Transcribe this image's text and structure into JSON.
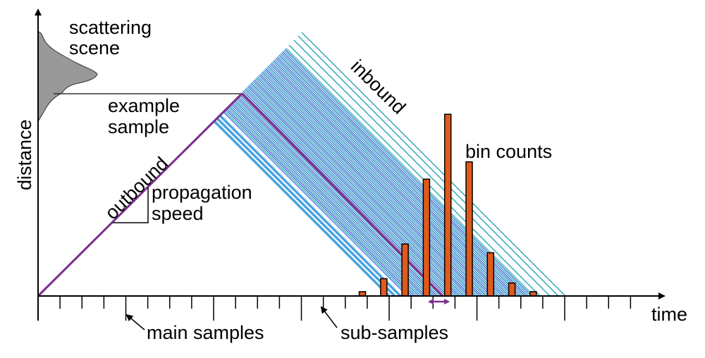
{
  "labels": {
    "scattering_scene": [
      "scattering",
      "scene"
    ],
    "example_sample": [
      "example",
      "sample"
    ],
    "inbound": "inbound",
    "outbound": "outbound",
    "propagation_speed": [
      "propagation",
      "speed"
    ],
    "bin_counts": "bin counts",
    "distance": "distance",
    "time": "time",
    "main_samples": "main samples",
    "sub_samples": "sub-samples"
  },
  "colors": {
    "outbound_line": "#7b2d8e",
    "example_inbound_line": "#8b2a7a",
    "inbound_blue": "#2f6fd6",
    "inbound_teal": "#2aa7b8",
    "inbound_light": "#4aa3df",
    "bar_fill": "#e05a1b",
    "scene_fill": "#999999",
    "bin_width_arrow": "#7b2d8e"
  },
  "bin_counts": [
    1,
    4,
    12,
    27,
    42,
    31,
    10,
    3,
    1
  ],
  "tick_counts": {
    "main": 6,
    "sub_per_main": 4
  }
}
